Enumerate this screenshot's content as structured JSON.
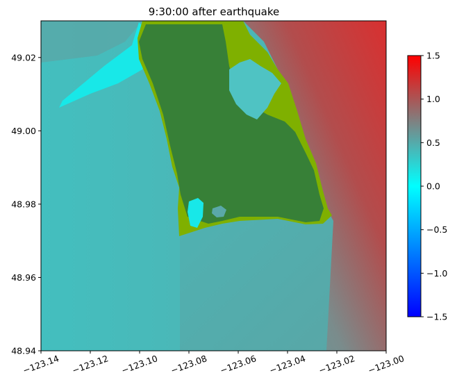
{
  "chart_data": {
    "type": "heatmap",
    "title": "9:30:00 after earthquake",
    "xlabel": "",
    "ylabel": "",
    "xlim": [
      -123.14,
      -123.0
    ],
    "ylim": [
      48.94,
      49.03
    ],
    "x_ticks": [
      -123.14,
      -123.12,
      -123.1,
      -123.08,
      -123.06,
      -123.04,
      -123.02,
      -123.0
    ],
    "x_tick_labels": [
      "−123.14",
      "−123.12",
      "−123.10",
      "−123.08",
      "−123.06",
      "−123.04",
      "−123.02",
      "−123.00"
    ],
    "y_ticks": [
      48.94,
      48.96,
      48.98,
      49.0,
      49.02
    ],
    "y_tick_labels": [
      "48.94",
      "48.96",
      "48.98",
      "49.00",
      "49.02"
    ],
    "colorbar": {
      "range": [
        -1.5,
        1.5
      ],
      "ticks": [
        -1.5,
        -1.0,
        -0.5,
        0.0,
        0.5,
        1.0,
        1.5
      ],
      "tick_labels": [
        "−1.5",
        "−1.0",
        "−0.5",
        "0.0",
        "0.5",
        "1.0",
        "1.5"
      ],
      "stops": [
        {
          "value": -1.5,
          "color": "#0000ff"
        },
        {
          "value": 0.0,
          "color": "#00ffff"
        },
        {
          "value": 0.75,
          "color": "#808080"
        },
        {
          "value": 1.5,
          "color": "#ff0000"
        }
      ]
    },
    "land_colors": {
      "dry_land": "#378037",
      "inundated": "#7fb000"
    },
    "water_colors": {
      "offshore_west": "#43bfbf",
      "near_shore": "#18e8e8",
      "offshore_east": "#d33030"
    }
  }
}
